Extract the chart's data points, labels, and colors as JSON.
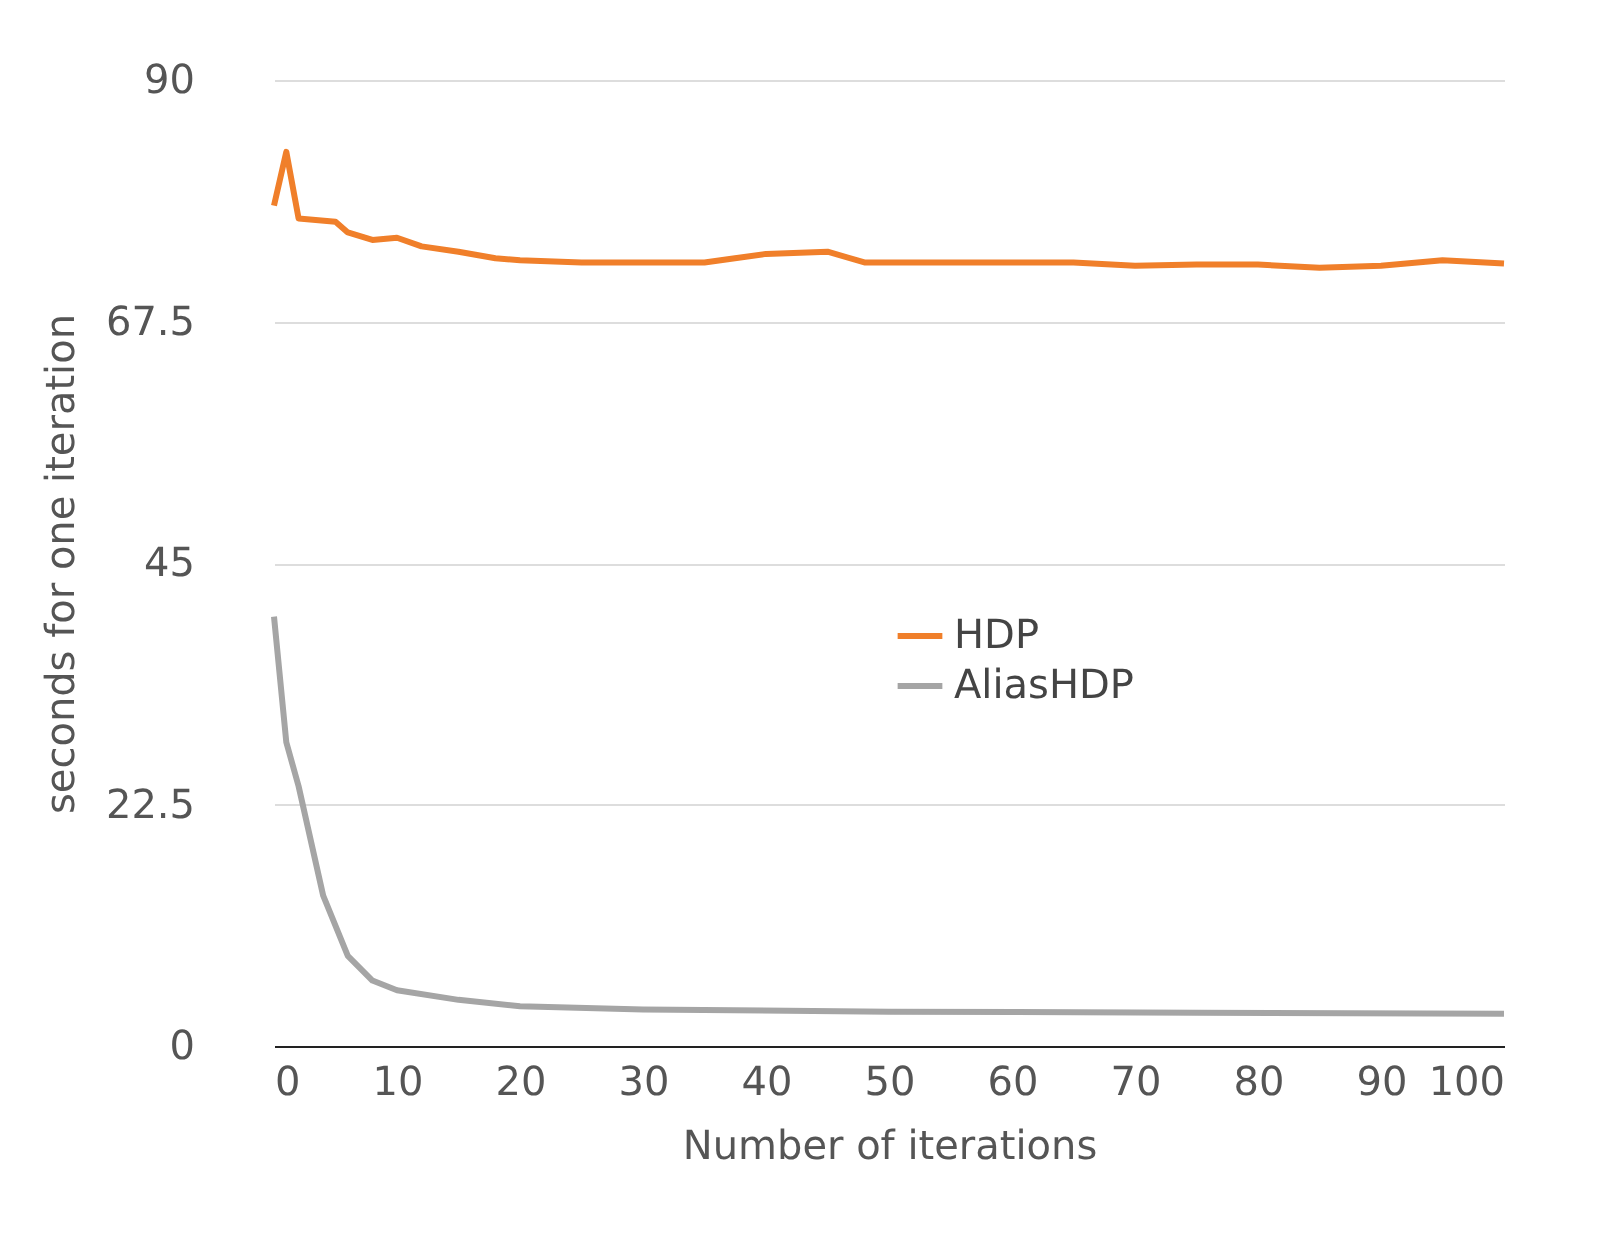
{
  "chart_data": {
    "type": "line",
    "xlabel": "Number of iterations",
    "ylabel": "seconds for one iteration",
    "xlim": [
      0,
      100
    ],
    "xticks": [
      0,
      10,
      20,
      30,
      40,
      50,
      60,
      70,
      80,
      90,
      100
    ],
    "ylim": [
      0,
      90
    ],
    "yticks": [
      0,
      22.5,
      45,
      67.5,
      90
    ],
    "grid": "y",
    "legend": "right",
    "line_style": "solid",
    "marker": "none",
    "series": [
      {
        "name": "HDP",
        "color": "#f07f2a",
        "x": [
          0,
          1,
          2,
          5,
          6,
          8,
          10,
          12,
          15,
          18,
          20,
          25,
          30,
          35,
          40,
          45,
          48,
          55,
          60,
          65,
          70,
          75,
          80,
          85,
          90,
          95,
          100
        ],
        "values": [
          78.3,
          83.3,
          77.1,
          76.8,
          75.8,
          75.1,
          75.3,
          74.5,
          74,
          73.4,
          73.2,
          73,
          73,
          73,
          73.8,
          74,
          73,
          73,
          73,
          73,
          72.7,
          72.8,
          72.8,
          72.5,
          72.7,
          73.2,
          72.9
        ]
      },
      {
        "name": "AliasHDP",
        "color": "#a5a5a5",
        "x": [
          0,
          1,
          2,
          4,
          6,
          8,
          10,
          15,
          20,
          30,
          50,
          75,
          100
        ],
        "values": [
          40,
          28.3,
          24.2,
          14,
          8.4,
          6.1,
          5.2,
          4.3,
          3.7,
          3.4,
          3.2,
          3.1,
          3.0
        ]
      }
    ]
  }
}
